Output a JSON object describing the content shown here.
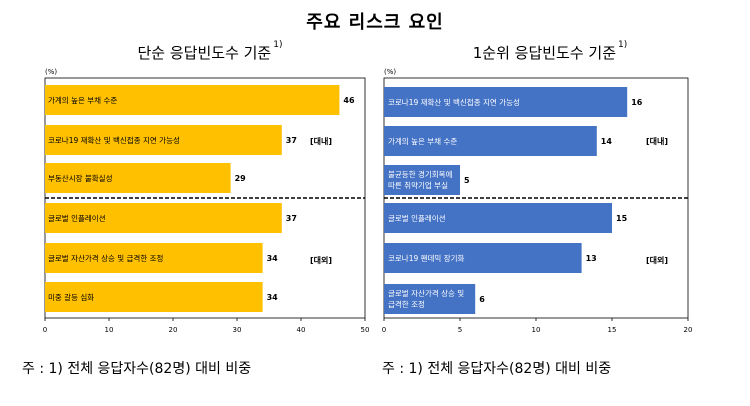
{
  "title": "주요 리스크 요인",
  "panels": {
    "left": {
      "title": "단순 응답빈도수 기준",
      "sup": "1)"
    },
    "right": {
      "title": "1순위 응답빈도수 기준",
      "sup": "1)"
    }
  },
  "footnotes": {
    "left": "주 : 1) 전체 응답자수(82명) 대비 비중",
    "right": "주 : 1) 전체 응답자수(82명) 대비 비중"
  },
  "colors": {
    "left_bar": "#FFC000",
    "right_bar": "#4472C4"
  },
  "chart_data": [
    {
      "type": "bar",
      "orientation": "horizontal",
      "title": "단순 응답빈도수 기준",
      "ylabel": "(%)",
      "xlim": [
        0,
        50
      ],
      "xticks": [
        0,
        10,
        20,
        30,
        40,
        50
      ],
      "categories": [
        "가계의 높은 부채 수준",
        "코로나19 재확산 및 백신접종 지연 가능성",
        "부동산시장 불확실성",
        "글로벌 인플레이션",
        "글로벌 자산가격 상승 및 급격한 조정",
        "미중 갈등 심화"
      ],
      "values": [
        46,
        37,
        29,
        37,
        34,
        34
      ],
      "groups": [
        {
          "label": "[대내]",
          "from": 0,
          "to": 2
        },
        {
          "label": "[대외]",
          "from": 3,
          "to": 5
        }
      ]
    },
    {
      "type": "bar",
      "orientation": "horizontal",
      "title": "1순위 응답빈도수 기준",
      "ylabel": "(%)",
      "xlim": [
        0,
        20
      ],
      "xticks": [
        0,
        5,
        10,
        15,
        20
      ],
      "categories": [
        "코로나19 재확산 및 백신접종 지연 가능성",
        "가계의 높은 부채 수준",
        "불균등한 경기회복에 따른 취약기업 부실",
        "글로벌 인플레이션",
        "코로나19 팬데믹 장기화",
        "글로벌 자산가격 상승 및 급격한 조정"
      ],
      "values": [
        16,
        14,
        5,
        15,
        13,
        6
      ],
      "groups": [
        {
          "label": "[대내]",
          "from": 0,
          "to": 2
        },
        {
          "label": "[대외]",
          "from": 3,
          "to": 5
        }
      ]
    }
  ]
}
